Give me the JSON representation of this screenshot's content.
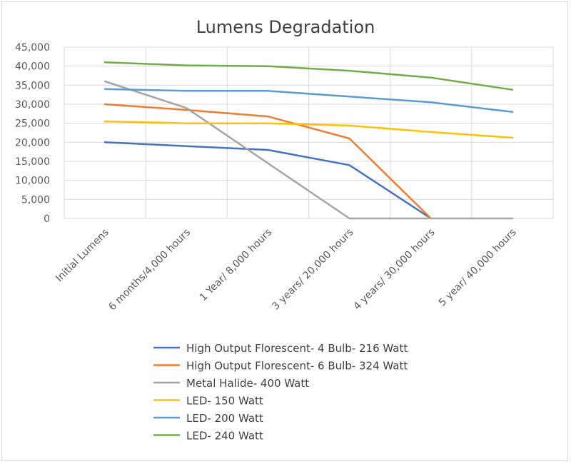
{
  "chart_data": {
    "type": "line",
    "title": "Lumens Degradation",
    "xlabel": "",
    "ylabel": "",
    "categories": [
      "Initial Lumens",
      "6 months/4,000 hours",
      "1 Year/ 8,000 hours",
      "3 years/ 20,000 hours",
      "4 years/ 30,000 hours",
      "5 year/ 40,000 hours"
    ],
    "y_ticks": [
      "0",
      "5,000",
      "10,000",
      "15,000",
      "20,000",
      "25,000",
      "30,000",
      "35,000",
      "40,000",
      "45,000"
    ],
    "ylim": [
      0,
      45000
    ],
    "grid": true,
    "legend_position": "bottom",
    "series": [
      {
        "name": "High Output Florescent- 4 Bulb- 216 Watt",
        "color": "#4472C4",
        "values": [
          20000,
          19000,
          18000,
          14000,
          0,
          null
        ]
      },
      {
        "name": "High Output Florescent- 6 Bulb- 324 Watt",
        "color": "#ED7D31",
        "values": [
          30000,
          28500,
          26800,
          21000,
          0,
          null
        ]
      },
      {
        "name": "Metal Halide- 400 Watt",
        "color": "#A5A5A5",
        "values": [
          36000,
          29000,
          14500,
          0,
          0,
          0
        ]
      },
      {
        "name": "LED- 150 Watt",
        "color": "#FFC000",
        "values": [
          25500,
          25000,
          25000,
          24400,
          22700,
          21200
        ]
      },
      {
        "name": "LED- 200 Watt",
        "color": "#5B9BD5",
        "values": [
          34000,
          33500,
          33500,
          32000,
          30500,
          28000
        ]
      },
      {
        "name": "LED- 240 Watt",
        "color": "#70AD47",
        "values": [
          41000,
          40200,
          40000,
          38800,
          37000,
          33800
        ]
      }
    ]
  }
}
